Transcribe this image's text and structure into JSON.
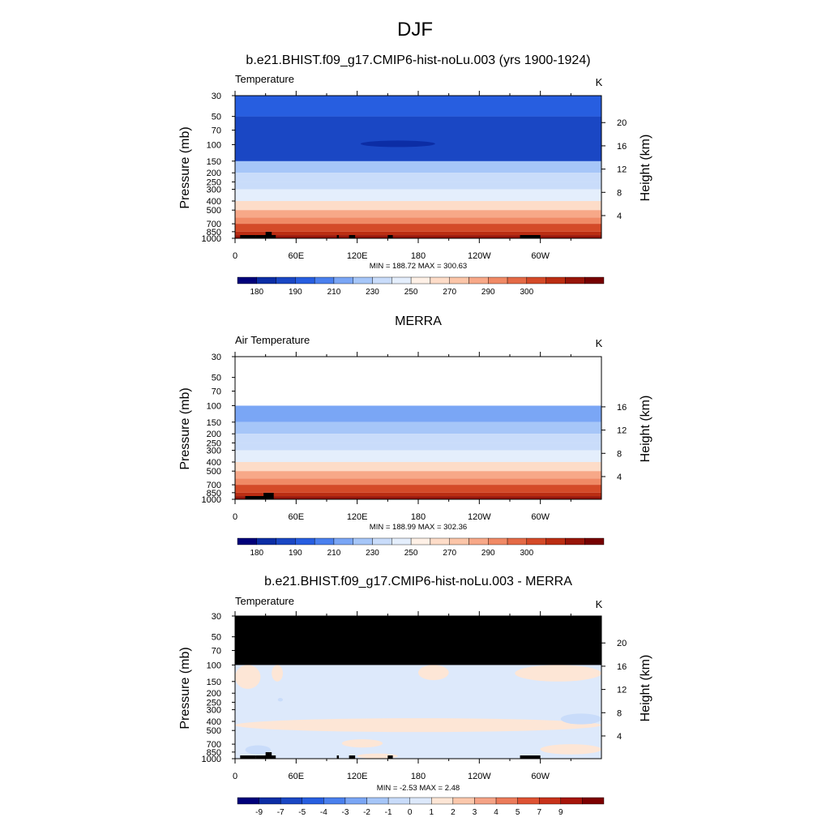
{
  "figure": {
    "season_title": "DJF"
  },
  "colors": {
    "temp_levels": [
      "#00007a",
      "#0c2da5",
      "#1a47c4",
      "#275ee0",
      "#4a80ee",
      "#7aa6f5",
      "#a6c6f8",
      "#c9dcfa",
      "#e4eefc",
      "#fef0e6",
      "#fddcc8",
      "#fbc5a8",
      "#f7a888",
      "#f08a66",
      "#e46a46",
      "#d44a28",
      "#bb2d12",
      "#981509",
      "#760000"
    ],
    "diff_levels": [
      "#00007a",
      "#0c2da5",
      "#1a47c4",
      "#275ee0",
      "#4a80ee",
      "#7aa6f5",
      "#a6c6f8",
      "#c9dcfa",
      "#dde9fb",
      "#fde6d6",
      "#fbc8ac",
      "#f5a386",
      "#ec7b5a",
      "#de5233",
      "#c8321a",
      "#a7150a",
      "#7d0000"
    ],
    "missing": "#000000",
    "land": "#000000"
  },
  "chart_data": [
    {
      "type": "heatmap",
      "name": "model",
      "title": "b.e21.BHIST.f09_g17.CMIP6-hist-noLu.003 (yrs 1900-1924)",
      "left_label": "Temperature",
      "units": "K",
      "ylabel": "Pressure (mb)",
      "ylabel_right": "Height (km)",
      "stats": "MIN = 188.72  MAX = 300.63",
      "x_ticks": [
        "0",
        "60E",
        "120E",
        "180",
        "120W",
        "60W"
      ],
      "x_tick_lons": [
        0,
        60,
        120,
        180,
        240,
        300
      ],
      "xlim": [
        0,
        360
      ],
      "y_ticks": [
        "30",
        "50",
        "70",
        "100",
        "150",
        "200",
        "250",
        "300",
        "400",
        "500",
        "700",
        "850",
        "1000"
      ],
      "y_tick_p": [
        30,
        50,
        70,
        100,
        150,
        200,
        250,
        300,
        400,
        500,
        700,
        850,
        1000
      ],
      "ylim_mb": [
        30,
        1000
      ],
      "height_ticks": [
        "4",
        "8",
        "12",
        "16",
        "20"
      ],
      "height_km": [
        4,
        8,
        12,
        16,
        20
      ],
      "profile_p": [
        30,
        50,
        70,
        100,
        150,
        200,
        250,
        300,
        400,
        500,
        600,
        700,
        850,
        925,
        1000
      ],
      "profile_T": [
        215,
        210,
        203,
        196,
        208,
        216,
        224,
        230,
        243,
        253,
        261,
        268,
        276,
        281,
        288
      ],
      "min_feature": {
        "lon": 160,
        "p": 100,
        "value": 188.72
      },
      "missing_above_mb": null,
      "land_lon": [
        [
          5,
          20
        ],
        [
          30,
          36
        ],
        [
          20,
          40
        ],
        [
          100,
          102
        ],
        [
          112,
          118
        ],
        [
          150,
          155
        ],
        [
          280,
          300
        ]
      ],
      "colorbar_labels": [
        "180",
        "190",
        "210",
        "230",
        "250",
        "270",
        "290",
        "300"
      ],
      "colorbar_label_at": [
        0.5,
        2.5,
        4.5,
        6.5,
        8.5,
        10.5,
        12.5,
        14.5
      ]
    },
    {
      "type": "heatmap",
      "name": "obs",
      "title": "MERRA",
      "left_label": "Air Temperature",
      "units": "K",
      "ylabel": "Pressure (mb)",
      "ylabel_right": "Height (km)",
      "stats": "MIN = 188.99  MAX = 302.36",
      "x_ticks": [
        "0",
        "60E",
        "120E",
        "180",
        "120W",
        "60W"
      ],
      "x_tick_lons": [
        0,
        60,
        120,
        180,
        240,
        300
      ],
      "xlim": [
        0,
        360
      ],
      "y_ticks": [
        "30",
        "50",
        "70",
        "100",
        "150",
        "200",
        "250",
        "300",
        "400",
        "500",
        "700",
        "850",
        "1000"
      ],
      "y_tick_p": [
        30,
        50,
        70,
        100,
        150,
        200,
        250,
        300,
        400,
        500,
        700,
        850,
        1000
      ],
      "ylim_mb": [
        30,
        1000
      ],
      "height_ticks": [
        "4",
        "8",
        "12",
        "16"
      ],
      "height_km": [
        4,
        8,
        12,
        16
      ],
      "profile_p": [
        100,
        150,
        200,
        250,
        300,
        400,
        500,
        600,
        700,
        850,
        925,
        1000
      ],
      "profile_T": [
        196,
        208,
        216,
        224,
        230,
        243,
        253,
        261,
        268,
        276,
        281,
        289
      ],
      "min_feature": null,
      "missing_above_mb": 100,
      "land_lon": [
        [
          10,
          30
        ],
        [
          28,
          38
        ]
      ],
      "colorbar_labels": [
        "180",
        "190",
        "210",
        "230",
        "250",
        "270",
        "290",
        "300"
      ],
      "colorbar_label_at": [
        0.5,
        2.5,
        4.5,
        6.5,
        8.5,
        10.5,
        12.5,
        14.5
      ]
    },
    {
      "type": "heatmap",
      "name": "diff",
      "title": "b.e21.BHIST.f09_g17.CMIP6-hist-noLu.003 - MERRA",
      "left_label": "Temperature",
      "units": "K",
      "ylabel": "Pressure (mb)",
      "ylabel_right": "Height (km)",
      "stats": "MIN =  -2.53  MAX =   2.48",
      "x_ticks": [
        "0",
        "60E",
        "120E",
        "180",
        "120W",
        "60W"
      ],
      "x_tick_lons": [
        0,
        60,
        120,
        180,
        240,
        300
      ],
      "xlim": [
        0,
        360
      ],
      "y_ticks": [
        "30",
        "50",
        "70",
        "100",
        "150",
        "200",
        "250",
        "300",
        "400",
        "500",
        "700",
        "850",
        "1000"
      ],
      "y_tick_p": [
        30,
        50,
        70,
        100,
        150,
        200,
        250,
        300,
        400,
        500,
        700,
        850,
        1000
      ],
      "ylim_mb": [
        30,
        1000
      ],
      "height_ticks": [
        "4",
        "8",
        "12",
        "16",
        "20"
      ],
      "height_km": [
        4,
        8,
        12,
        16,
        20
      ],
      "missing_above_mb": 100,
      "diff_patches": [
        {
          "lon": [
            0,
            25
          ],
          "p": [
            100,
            180
          ],
          "value": 0.5
        },
        {
          "lon": [
            36,
            47
          ],
          "p": [
            100,
            150
          ],
          "value": 0.5
        },
        {
          "lon": [
            180,
            210
          ],
          "p": [
            100,
            145
          ],
          "value": 0.5
        },
        {
          "lon": [
            275,
            360
          ],
          "p": [
            100,
            150
          ],
          "value": 0.5
        },
        {
          "lon": [
            0,
            360
          ],
          "p": [
            370,
            520
          ],
          "value": 0.5
        },
        {
          "lon": [
            105,
            145
          ],
          "p": [
            620,
            760
          ],
          "value": 0.5
        },
        {
          "lon": [
            300,
            360
          ],
          "p": [
            700,
            900
          ],
          "value": 0.5
        },
        {
          "lon": [
            120,
            160
          ],
          "p": [
            880,
            1000
          ],
          "value": 0.5
        },
        {
          "lon": [
            320,
            360
          ],
          "p": [
            330,
            430
          ],
          "value": -1.5
        },
        {
          "lon": [
            10,
            35
          ],
          "p": [
            720,
            900
          ],
          "value": -1.5
        },
        {
          "lon": [
            42,
            47
          ],
          "p": [
            225,
            245
          ],
          "value": -1.5
        }
      ],
      "land_lon": [
        [
          5,
          20
        ],
        [
          30,
          36
        ],
        [
          20,
          40
        ],
        [
          100,
          102
        ],
        [
          112,
          118
        ],
        [
          150,
          155
        ],
        [
          280,
          300
        ]
      ],
      "colorbar_labels": [
        "-9",
        "-7",
        "-5",
        "-4",
        "-3",
        "-2",
        "-1",
        "0",
        "1",
        "2",
        "3",
        "4",
        "5",
        "7",
        "9"
      ],
      "colorbar_label_at": [
        1,
        2,
        3,
        4,
        5,
        6,
        7,
        8,
        9,
        10,
        11,
        12,
        13,
        14,
        15
      ]
    }
  ]
}
